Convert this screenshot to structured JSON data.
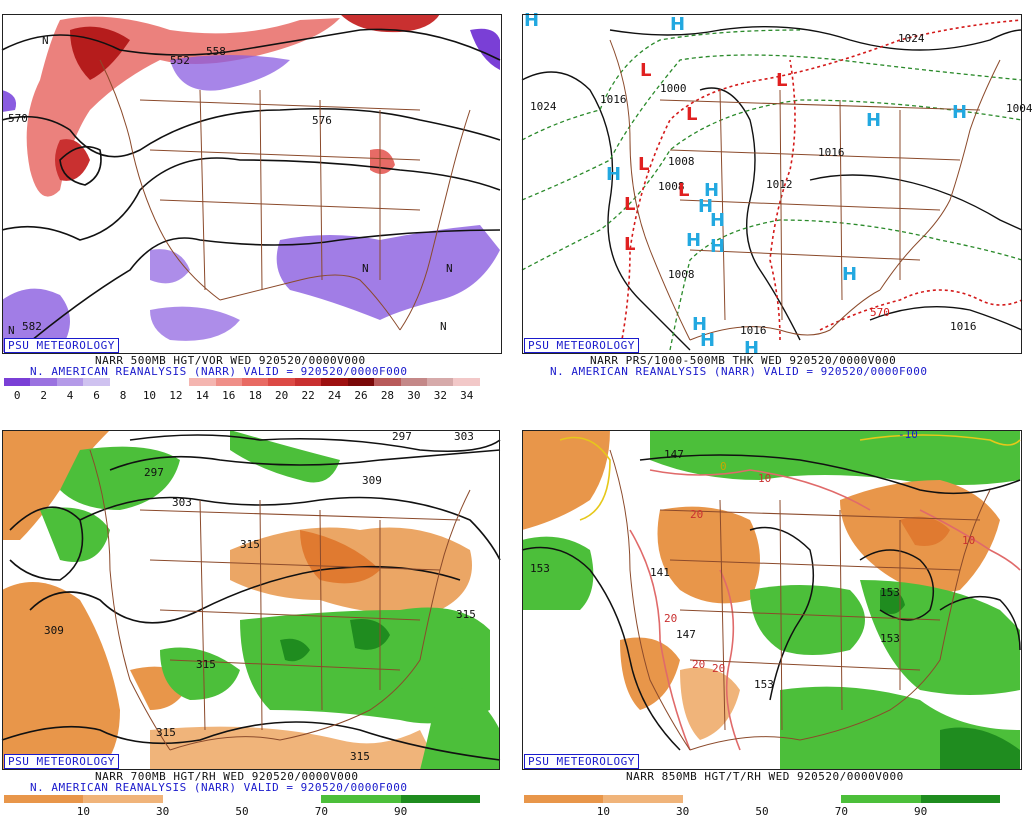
{
  "panels": [
    {
      "badge": "PSU METEOROLOGY",
      "line1": "NARR 500MB HGT/VOR WED 920520/0000V000",
      "line2": "N. AMERICAN REANALYSIS (NARR) VALID = 920520/0000F000",
      "colorbar": {
        "colors": [
          "#7a3fd6",
          "#9a72e0",
          "#b49ae8",
          "#cfc2f0",
          "#ffffff",
          "#ffffff",
          "#ffffff",
          "#f4b5b0",
          "#ef8f88",
          "#e86a63",
          "#dc4a45",
          "#c93030",
          "#9e1010",
          "#7a0808",
          "#b85a5a",
          "#c48888",
          "#d6aaaa",
          "#f2c8c8"
        ],
        "labels": [
          "0",
          "2",
          "4",
          "6",
          "8",
          "10",
          "12",
          "14",
          "16",
          "18",
          "20",
          "22",
          "24",
          "26",
          "28",
          "30",
          "32",
          "34"
        ]
      },
      "contour_labels": [
        "552",
        "558",
        "570",
        "582",
        "576"
      ],
      "symbols": [
        "N",
        "N",
        "N",
        "N",
        "N"
      ]
    },
    {
      "badge": "PSU METEOROLOGY",
      "line1": "NARR PRS/1000-500MB THK WED 920520/0000V000",
      "line2": "N. AMERICAN REANALYSIS (NARR) VALID = 920520/0000F000",
      "contour_labels": [
        "1024",
        "1016",
        "1008",
        "1008",
        "1016",
        "1012",
        "1016",
        "1024",
        "1016",
        "570",
        "1008",
        "1000",
        "1004"
      ],
      "symbols": [
        "H",
        "L",
        "L",
        "L",
        "L",
        "L",
        "L",
        "L",
        "H",
        "H",
        "H",
        "H",
        "H",
        "H",
        "H",
        "H",
        "H",
        "H",
        "H",
        "H",
        "H"
      ]
    },
    {
      "badge": "PSU METEOROLOGY",
      "line1": "NARR 700MB HGT/RH WED 920520/0000V000",
      "line2": "N. AMERICAN REANALYSIS (NARR) VALID = 920520/0000F000",
      "colorbar": {
        "colors": [
          "#e8964a",
          "#f0b47a",
          "#ffffff",
          "#ffffff",
          "#4cbf3a",
          "#1f8c1f"
        ],
        "labels": [
          "10",
          "30",
          "50",
          "70",
          "90"
        ]
      },
      "contour_labels": [
        "297",
        "303",
        "309",
        "315",
        "315",
        "309",
        "315",
        "315",
        "315",
        "297",
        "303"
      ]
    },
    {
      "badge": "PSU METEOROLOGY",
      "line1": "NARR 850MB HGT/T/RH WED 920520/0000V000",
      "colorbar": {
        "colors": [
          "#e8964a",
          "#f0b47a",
          "#ffffff",
          "#ffffff",
          "#4cbf3a",
          "#1f8c1f"
        ],
        "labels": [
          "10",
          "30",
          "50",
          "70",
          "90"
        ]
      },
      "contour_labels": [
        "147",
        "153",
        "141",
        "147",
        "153",
        "153",
        "153",
        "-10",
        "0",
        "10",
        "20",
        "20",
        "20",
        "20",
        "10"
      ]
    }
  ]
}
